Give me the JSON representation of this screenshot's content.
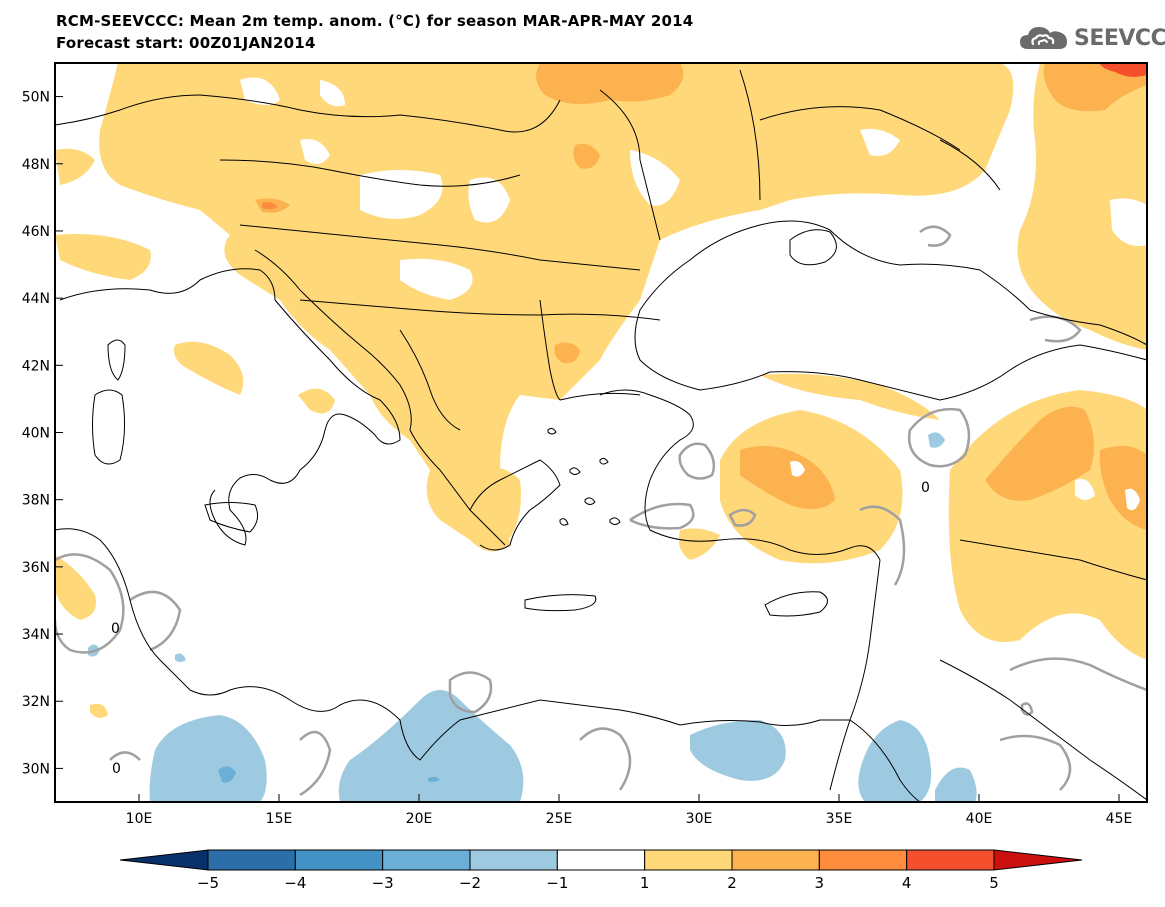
{
  "header": {
    "title_line1": "RCM-SEEVCCC: Mean 2m temp. anom. (°C) for season MAR-APR-MAY 2014",
    "title_line2": "Forecast start: 00Z01JAN2014"
  },
  "logo": {
    "text": "SEEVCCC",
    "icon": "cloud-logo-icon"
  },
  "map": {
    "lon_range": [
      7,
      46
    ],
    "lat_range": [
      29,
      51
    ],
    "lon_ticks": [
      "10E",
      "15E",
      "20E",
      "25E",
      "30E",
      "35E",
      "40E",
      "45E"
    ],
    "lat_ticks": [
      "30N",
      "32N",
      "34N",
      "36N",
      "38N",
      "40N",
      "42N",
      "44N",
      "46N",
      "48N",
      "50N"
    ],
    "contour_label": "0"
  },
  "colorbar": {
    "labels": [
      "−5",
      "−4",
      "−3",
      "−2",
      "−1",
      "1",
      "2",
      "3",
      "4",
      "5"
    ],
    "colors": [
      "#08306b",
      "#2b6ea8",
      "#4292c6",
      "#6baed6",
      "#9ecae1",
      "#ffffff",
      "#ffd87a",
      "#fdb250",
      "#fd8d3c",
      "#f4502e",
      "#cc1010"
    ]
  },
  "legend_colors": {
    "anomaly_plus1_2": "#ffd87a",
    "anomaly_plus2_3": "#fdb250",
    "anomaly_plus3_4": "#fd8d3c",
    "anomaly_minus1_2": "#9ecae1",
    "anomaly_minus2_3": "#6baed6",
    "zero_contour": "#a0a0a0",
    "coastline": "#000000"
  }
}
